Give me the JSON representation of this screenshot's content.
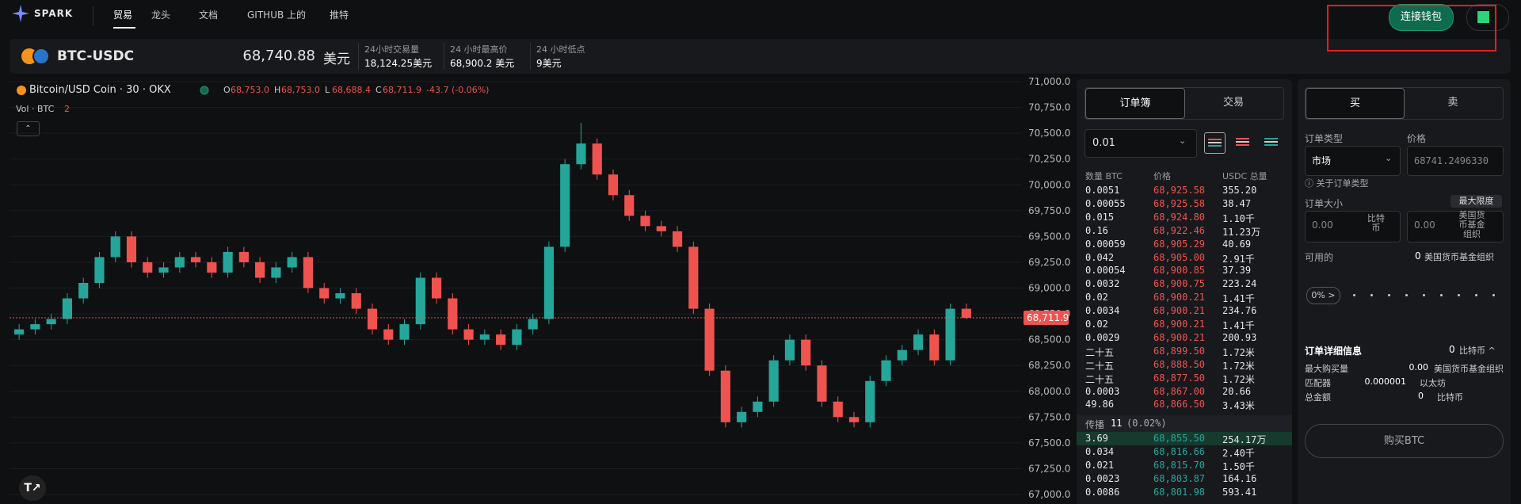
{
  "nav": {
    "brand": "SPARK",
    "items": [
      "贸易",
      "龙头",
      "文档",
      "GITHUB 上的",
      "推特"
    ],
    "connect": "连接钱包"
  },
  "ticker": {
    "pair": "BTC-USDC",
    "price": "68,740.88",
    "unit": "美元",
    "stats": [
      {
        "label": "24小时交易量",
        "value": "18,124.25美元"
      },
      {
        "label": "24 小时最高价",
        "value": "68,900.2 美元"
      },
      {
        "label": "24 小时低点",
        "value": "9美元"
      }
    ]
  },
  "chart": {
    "symbol": "Bitcoin/USD Coin · 30 · OKX",
    "ohlc": [
      {
        "key": "O",
        "value": "68,753.0"
      },
      {
        "key": "H",
        "value": "68,753.0"
      },
      {
        "key": "L",
        "value": "68,688.4"
      },
      {
        "key": "C",
        "value": "68,711.9"
      }
    ],
    "change": "-43.7 (-0.06%)",
    "vol": "Vol · BTC",
    "vol_value": "2",
    "up_color": "#26a69a",
    "down_color": "#ef5350",
    "ylim": [
      66908,
      71023
    ],
    "yticks": [
      {
        "value": 71000,
        "label": "71,000.0"
      },
      {
        "value": 70750,
        "label": "70,750.0"
      },
      {
        "value": 70500,
        "label": "70,500.0"
      },
      {
        "value": 70250,
        "label": "70,250.0"
      },
      {
        "value": 70000,
        "label": "70,000.0"
      },
      {
        "value": 69750,
        "label": "69,750.0"
      },
      {
        "value": 69500,
        "label": "69,500.0"
      },
      {
        "value": 69250,
        "label": "69,250.0"
      },
      {
        "value": 69000,
        "label": "69,000.0"
      },
      {
        "value": 68750,
        "label": "68,750.0"
      },
      {
        "value": 68500,
        "label": "68,500.0"
      },
      {
        "value": 68250,
        "label": "68,250.0"
      },
      {
        "value": 68000,
        "label": "68,000.0"
      },
      {
        "value": 67750,
        "label": "67,750.0"
      },
      {
        "value": 67500,
        "label": "67,500.0"
      },
      {
        "value": 67250,
        "label": "67,250.0"
      },
      {
        "value": 67000,
        "label": "67,000.0"
      }
    ],
    "last_price": {
      "value": 68711.9,
      "label": "68,711.9"
    },
    "candles": [
      [
        68550,
        68650,
        68500,
        68600
      ],
      [
        68600,
        68700,
        68550,
        68650
      ],
      [
        68650,
        68750,
        68600,
        68700
      ],
      [
        68700,
        68950,
        68650,
        68900
      ],
      [
        68900,
        69100,
        68850,
        69050
      ],
      [
        69050,
        69350,
        69000,
        69300
      ],
      [
        69300,
        69550,
        69250,
        69500
      ],
      [
        69500,
        69550,
        69200,
        69250
      ],
      [
        69250,
        69300,
        69100,
        69150
      ],
      [
        69150,
        69250,
        69100,
        69200
      ],
      [
        69200,
        69350,
        69150,
        69300
      ],
      [
        69300,
        69350,
        69200,
        69250
      ],
      [
        69250,
        69300,
        69100,
        69150
      ],
      [
        69150,
        69400,
        69100,
        69350
      ],
      [
        69350,
        69400,
        69200,
        69250
      ],
      [
        69250,
        69300,
        69050,
        69100
      ],
      [
        69100,
        69250,
        69050,
        69200
      ],
      [
        69200,
        69350,
        69150,
        69300
      ],
      [
        69300,
        69350,
        68950,
        69000
      ],
      [
        69000,
        69050,
        68850,
        68900
      ],
      [
        68900,
        69000,
        68850,
        68950
      ],
      [
        68950,
        69000,
        68750,
        68800
      ],
      [
        68800,
        68850,
        68550,
        68600
      ],
      [
        68600,
        68650,
        68450,
        68500
      ],
      [
        68500,
        68700,
        68450,
        68650
      ],
      [
        68650,
        69150,
        68600,
        69100
      ],
      [
        69100,
        69150,
        68850,
        68900
      ],
      [
        68900,
        68950,
        68550,
        68600
      ],
      [
        68600,
        68650,
        68450,
        68500
      ],
      [
        68500,
        68600,
        68450,
        68550
      ],
      [
        68550,
        68600,
        68400,
        68450
      ],
      [
        68450,
        68650,
        68400,
        68600
      ],
      [
        68600,
        68750,
        68550,
        68700
      ],
      [
        68700,
        69450,
        68650,
        69400
      ],
      [
        69400,
        70250,
        69350,
        70200
      ],
      [
        70200,
        70600,
        70150,
        70400
      ],
      [
        70400,
        70450,
        70050,
        70100
      ],
      [
        70100,
        70150,
        69850,
        69900
      ],
      [
        69900,
        69950,
        69650,
        69700
      ],
      [
        69700,
        69750,
        69550,
        69600
      ],
      [
        69600,
        69650,
        69500,
        69550
      ],
      [
        69550,
        69600,
        69350,
        69400
      ],
      [
        69400,
        69450,
        68750,
        68800
      ],
      [
        68800,
        68850,
        68150,
        68200
      ],
      [
        68200,
        68250,
        67650,
        67700
      ],
      [
        67700,
        67850,
        67650,
        67800
      ],
      [
        67800,
        67950,
        67750,
        67900
      ],
      [
        67900,
        68350,
        67850,
        68300
      ],
      [
        68300,
        68550,
        68250,
        68500
      ],
      [
        68500,
        68550,
        68200,
        68250
      ],
      [
        68250,
        68300,
        67850,
        67900
      ],
      [
        67900,
        67950,
        67700,
        67750
      ],
      [
        67750,
        67800,
        67650,
        67700
      ],
      [
        67700,
        68150,
        67650,
        68100
      ],
      [
        68100,
        68350,
        68050,
        68300
      ],
      [
        68300,
        68450,
        68250,
        68400
      ],
      [
        68400,
        68600,
        68350,
        68550
      ],
      [
        68550,
        68600,
        68250,
        68300
      ],
      [
        68300,
        68850,
        68250,
        68800
      ],
      [
        68800,
        68850,
        68700,
        68712
      ]
    ]
  },
  "orderbook": {
    "tabs": [
      "订单簿",
      "交易"
    ],
    "size": "0.01",
    "headers": [
      "数量 BTC",
      "价格",
      "USDC 总量"
    ],
    "asks": [
      [
        "0.0051",
        "68,925.58",
        "355.20"
      ],
      [
        "0.00055",
        "68,925.58",
        "38.47"
      ],
      [
        "0.015",
        "68,924.80",
        "1.10千"
      ],
      [
        "0.16",
        "68,922.46",
        "11.23万"
      ],
      [
        "0.00059",
        "68,905.29",
        "40.69"
      ],
      [
        "0.042",
        "68,905.00",
        "2.91千"
      ],
      [
        "0.00054",
        "68,900.85",
        "37.39"
      ],
      [
        "0.0032",
        "68,900.75",
        "223.24"
      ],
      [
        "0.02",
        "68,900.21",
        "1.41千"
      ],
      [
        "0.0034",
        "68,900.21",
        "234.76"
      ],
      [
        "0.02",
        "68,900.21",
        "1.41千"
      ],
      [
        "0.0029",
        "68,900.21",
        "200.93"
      ],
      [
        "二十五",
        "68,899.50",
        "1.72米"
      ],
      [
        "二十五",
        "68,888.50",
        "1.72米"
      ],
      [
        "二十五",
        "68,877.50",
        "1.72米"
      ],
      [
        "0.0003",
        "68,867.00",
        "20.66"
      ],
      [
        "49.86",
        "68,866.50",
        "3.43米"
      ]
    ],
    "spread": {
      "label": "传播",
      "value": "11",
      "pct": "(0.02%)"
    },
    "bids": [
      [
        "3.69",
        "68,855.50",
        "254.17万"
      ],
      [
        "0.034",
        "68,816.66",
        "2.40千"
      ],
      [
        "0.021",
        "68,815.70",
        "1.50千"
      ],
      [
        "0.0023",
        "68,803.87",
        "164.16"
      ],
      [
        "0.0086",
        "68,801.98",
        "593.41"
      ]
    ]
  },
  "trade": {
    "tabs": [
      "买",
      "卖"
    ],
    "order_type_label": "订单类型",
    "price_label": "价格",
    "order_type": "市场",
    "price": "68741.2496330",
    "about": "ⓘ 关于订单类型",
    "size_label": "订单大小",
    "max": "最大限度",
    "size_a": "0.00",
    "unit_a": "比特币",
    "size_b": "0.00",
    "unit_b": "美国货币基金组织",
    "available_label": "可用的",
    "available_value": "0",
    "available_unit": "美国货币基金组织",
    "pct": "0% >",
    "details_title": "订单详细信息",
    "details_value": "0",
    "details_unit": "比特币 ^",
    "details": [
      {
        "label": "最大购买量",
        "value": "0.00",
        "unit": "美国货币基金组织"
      },
      {
        "label": "匹配器",
        "value": "0.000001",
        "unit": "以太坊"
      },
      {
        "label": "总金额",
        "value": "0",
        "unit": "比特币"
      }
    ],
    "buy": "购买BTC"
  }
}
